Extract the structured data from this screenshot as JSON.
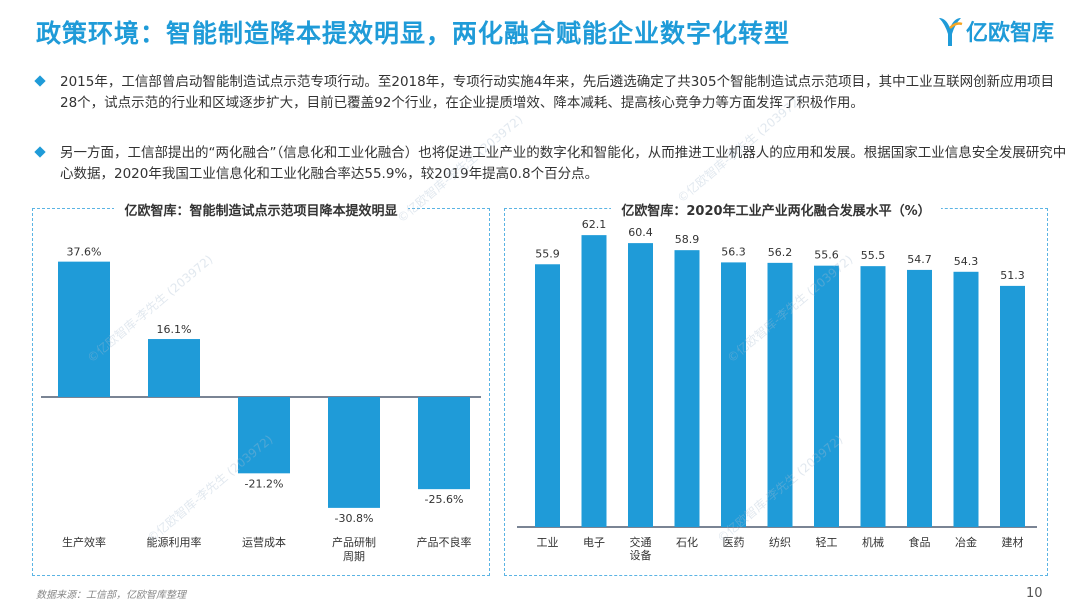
{
  "title": "政策环境：智能制造降本提效明显，两化融合赋能企业数字化转型",
  "logo_text": "亿欧智库",
  "bullets": [
    "2015年，工信部曾启动智能制造试点示范专项行动。至2018年，专项行动实施4年来，先后遴选确定了共305个智能制造试点示范项目，其中工业互联网创新应用项目28个，试点示范的行业和区域逐步扩大，目前已覆盖92个行业，在企业提质增效、降本减耗、提高核心竞争力等方面发挥了积极作用。",
    "另一方面，工信部提出的“两化融合”（信息化和工业化融合）也将促进工业产业的数字化和智能化，从而推进工业机器人的应用和发展。根据国家工业信息安全发展研究中心数据，2020年我国工业信息化和工业化融合率达55.9%，较2019年提高0.8个百分点。"
  ],
  "chart_data": [
    {
      "type": "bar",
      "title": "亿欧智库：智能制造试点示范项目降本提效明显",
      "categories": [
        "生产效率",
        "能源利用率",
        "运营成本",
        "产品研制周期",
        "产品不良率"
      ],
      "category_lines": [
        [
          "生产效率"
        ],
        [
          "能源利用率"
        ],
        [
          "运营成本"
        ],
        [
          "产品研制",
          "周期"
        ],
        [
          "产品不良率"
        ]
      ],
      "values": [
        37.6,
        16.1,
        -21.2,
        -30.8,
        -25.6
      ],
      "value_labels": [
        "37.6%",
        "16.1%",
        "-21.2%",
        "-30.8%",
        "-25.6%"
      ],
      "color": "#1f9bd8"
    },
    {
      "type": "bar",
      "title": "亿欧智库：2020年工业产业两化融合发展水平（%）",
      "categories": [
        "工业",
        "电子",
        "交通设备",
        "石化",
        "医药",
        "纺织",
        "轻工",
        "机械",
        "食品",
        "冶金",
        "建材"
      ],
      "category_lines": [
        [
          "工业"
        ],
        [
          "电子"
        ],
        [
          "交通",
          "设备"
        ],
        [
          "石化"
        ],
        [
          "医药"
        ],
        [
          "纺织"
        ],
        [
          "轻工"
        ],
        [
          "机械"
        ],
        [
          "食品"
        ],
        [
          "冶金"
        ],
        [
          "建材"
        ]
      ],
      "values": [
        55.9,
        62.1,
        60.4,
        58.9,
        56.3,
        56.2,
        55.6,
        55.5,
        54.7,
        54.3,
        51.3
      ],
      "value_labels": [
        "55.9",
        "62.1",
        "60.4",
        "58.9",
        "56.3",
        "56.2",
        "55.6",
        "55.5",
        "54.7",
        "54.3",
        "51.3"
      ],
      "color": "#1f9bd8"
    }
  ],
  "watermark": "©亿欧智库-李先生 (203972)",
  "source": "数据来源：工信部，亿欧智库整理",
  "page_number": "10",
  "colors": {
    "accent": "#1f9bd8",
    "axis": "#2a3a55"
  }
}
